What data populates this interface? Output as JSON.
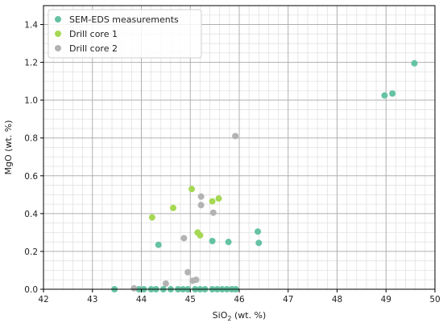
{
  "chart_data": {
    "type": "scatter",
    "xlabel_prefix": "SiO",
    "xlabel_sub": "2",
    "xlabel_suffix": " (wt. %)",
    "ylabel": "MgO (wt. %)",
    "xlim": [
      42,
      50
    ],
    "ylim": [
      0,
      1.5
    ],
    "xticks": [
      "42",
      "43",
      "44",
      "45",
      "46",
      "47",
      "48",
      "49",
      "50"
    ],
    "yticks": [
      "0.0",
      "0.2",
      "0.4",
      "0.6",
      "0.8",
      "1.0",
      "1.2",
      "1.4"
    ],
    "grid": "major and minor",
    "legend_position": "top-left",
    "series": [
      {
        "name": "SEM-EDS measurements",
        "color": "#66c2a5",
        "points": [
          [
            43.45,
            0.0
          ],
          [
            43.95,
            0.0
          ],
          [
            44.05,
            0.0
          ],
          [
            44.2,
            0.0
          ],
          [
            44.3,
            0.0
          ],
          [
            44.45,
            0.0
          ],
          [
            44.6,
            0.0
          ],
          [
            44.75,
            0.0
          ],
          [
            44.85,
            0.0
          ],
          [
            44.95,
            0.0
          ],
          [
            45.1,
            0.0
          ],
          [
            45.2,
            0.0
          ],
          [
            45.3,
            0.0
          ],
          [
            45.45,
            0.0
          ],
          [
            45.55,
            0.0
          ],
          [
            45.65,
            0.0
          ],
          [
            45.75,
            0.0
          ],
          [
            45.85,
            0.0
          ],
          [
            45.93,
            0.0
          ],
          [
            44.35,
            0.235
          ],
          [
            45.45,
            0.255
          ],
          [
            45.78,
            0.25
          ],
          [
            46.38,
            0.305
          ],
          [
            46.4,
            0.245
          ],
          [
            48.97,
            1.025
          ],
          [
            49.13,
            1.035
          ],
          [
            49.58,
            1.195
          ]
        ]
      },
      {
        "name": "Drill core 1",
        "color": "#a6d854",
        "points": [
          [
            44.22,
            0.38
          ],
          [
            44.65,
            0.43
          ],
          [
            45.03,
            0.53
          ],
          [
            45.15,
            0.3
          ],
          [
            45.2,
            0.285
          ],
          [
            45.45,
            0.465
          ],
          [
            45.58,
            0.48
          ]
        ]
      },
      {
        "name": "Drill core 2",
        "color": "#b3b3b3",
        "points": [
          [
            43.85,
            0.005
          ],
          [
            44.5,
            0.03
          ],
          [
            44.87,
            0.27
          ],
          [
            44.95,
            0.09
          ],
          [
            45.05,
            0.045
          ],
          [
            45.12,
            0.05
          ],
          [
            45.22,
            0.49
          ],
          [
            45.22,
            0.445
          ],
          [
            45.47,
            0.405
          ],
          [
            45.92,
            0.81
          ]
        ]
      }
    ]
  }
}
